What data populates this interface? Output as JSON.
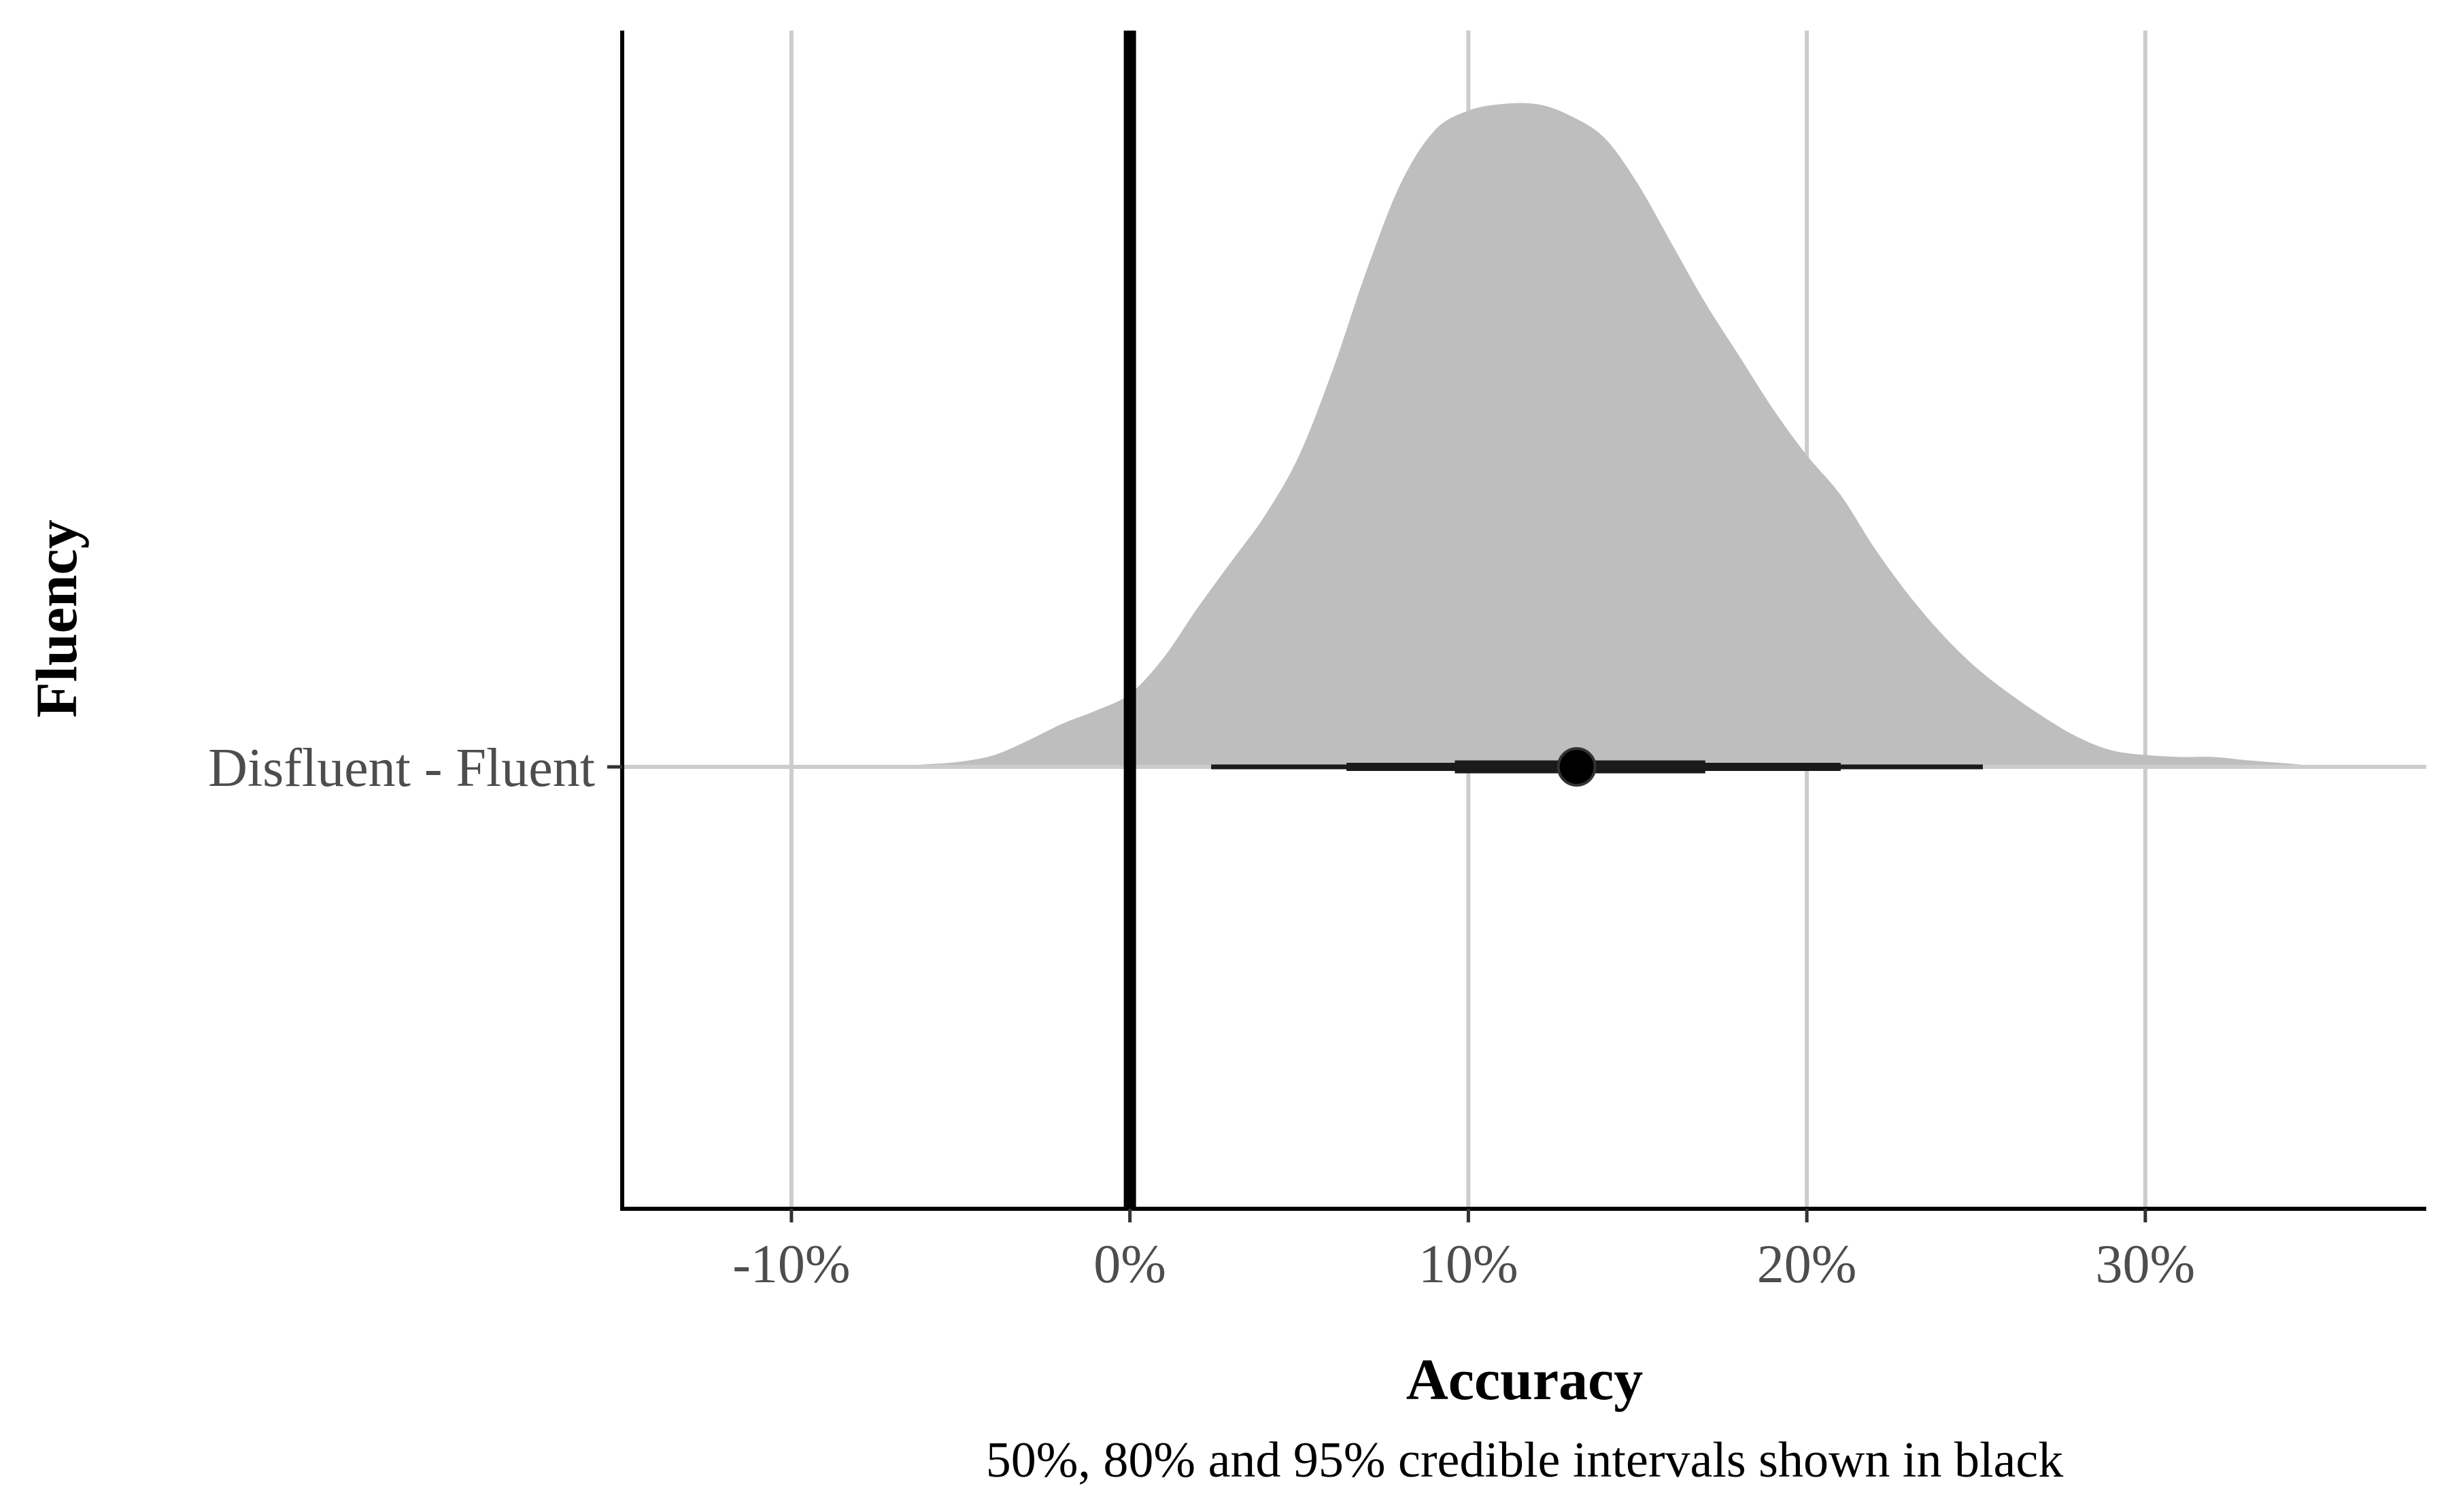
{
  "chart_data": {
    "type": "density",
    "title": "",
    "xlabel": "Accuracy",
    "ylabel": "Fluency",
    "caption": "50%, 80% and 95% credible intervals shown in black",
    "xlim": [
      -15,
      38.3
    ],
    "x_ticks": [
      -10,
      0,
      10,
      20,
      30
    ],
    "x_tick_labels": [
      "-10%",
      "0%",
      "10%",
      "20%",
      "30%"
    ],
    "categories": [
      "Disfluent - Fluent"
    ],
    "reference_line_x": 0,
    "grid": true,
    "density": {
      "x": [
        -10,
        -7,
        -6,
        -5,
        -4,
        -3,
        -2,
        -1,
        0,
        1,
        2,
        3,
        4,
        5,
        6,
        7,
        8,
        9,
        10,
        11,
        12,
        12.9,
        14,
        15,
        16,
        17,
        18,
        19,
        20,
        21,
        22,
        23,
        24,
        25,
        26,
        27,
        28,
        29,
        30,
        31,
        32,
        33,
        34,
        35,
        36.3
      ],
      "y": [
        0,
        0.002,
        0.004,
        0.008,
        0.018,
        0.04,
        0.065,
        0.085,
        0.11,
        0.165,
        0.24,
        0.31,
        0.38,
        0.47,
        0.6,
        0.75,
        0.88,
        0.96,
        0.99,
        1.0,
        1.0,
        0.985,
        0.95,
        0.88,
        0.79,
        0.7,
        0.62,
        0.54,
        0.47,
        0.41,
        0.33,
        0.26,
        0.2,
        0.15,
        0.11,
        0.075,
        0.045,
        0.025,
        0.018,
        0.015,
        0.015,
        0.01,
        0.006,
        0.002,
        0
      ]
    },
    "point_estimate": 13.2,
    "intervals": [
      {
        "level": "50%",
        "lower": 9.6,
        "upper": 17.0
      },
      {
        "level": "80%",
        "lower": 6.4,
        "upper": 21.0
      },
      {
        "level": "95%",
        "lower": 2.4,
        "upper": 25.2
      }
    ],
    "colors": {
      "density_fill": "#bebebe",
      "grid": "#cccccc",
      "interval": "#000000",
      "axis": "#000000"
    }
  }
}
